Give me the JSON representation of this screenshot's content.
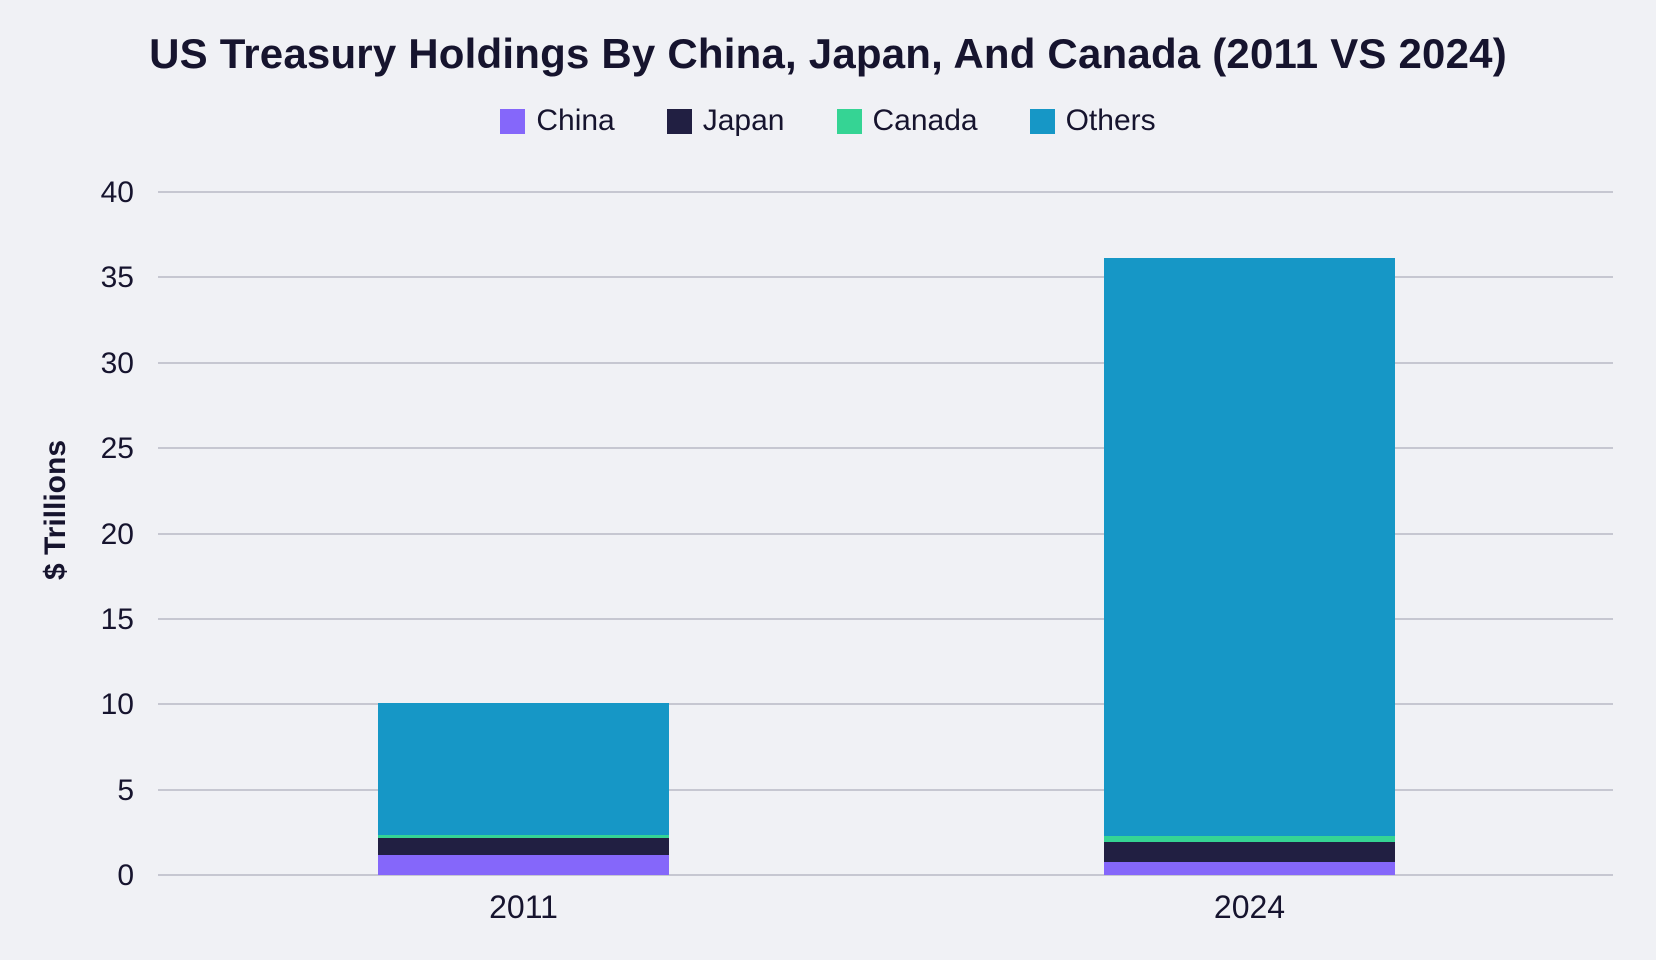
{
  "colors": {
    "background": "#F0F1F5",
    "text": "#16142E",
    "gridline": "#C6C7D1"
  },
  "chart_data": {
    "type": "bar",
    "stacked": true,
    "title": "US Treasury Holdings By China, Japan, And Canada (2011 VS 2024)",
    "xlabel": "",
    "ylabel": "$ Trillions",
    "categories": [
      "2011",
      "2024"
    ],
    "series": [
      {
        "name": "China",
        "color": "#8567FA",
        "values": [
          1.2,
          0.77
        ]
      },
      {
        "name": "Japan",
        "color": "#211F42",
        "values": [
          0.95,
          1.15
        ]
      },
      {
        "name": "Canada",
        "color": "#35D494",
        "values": [
          0.2,
          0.35
        ]
      },
      {
        "name": "Others",
        "color": "#1697C6",
        "values": [
          7.75,
          33.85
        ]
      }
    ],
    "totals": [
      10.1,
      36.1
    ],
    "ylim": [
      0,
      40
    ],
    "yticks": [
      0,
      5,
      10,
      15,
      20,
      25,
      30,
      35,
      40
    ],
    "grid": "horizontal-only",
    "legend_position": "top-center"
  }
}
